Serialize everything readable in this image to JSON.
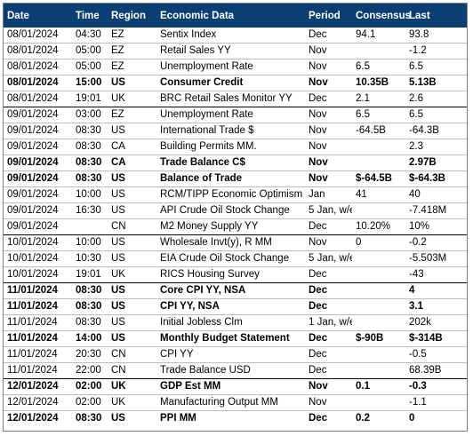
{
  "headers": {
    "date": "Date",
    "time": "Time",
    "region": "Region",
    "event": "Economic Data",
    "period": "Period",
    "consensus": "Consensus",
    "last": "Last"
  },
  "rows": [
    {
      "date": "08/01/2024",
      "time": "04:30",
      "region": "EZ",
      "event": "Sentix Index",
      "period": "Dec",
      "consensus": "94.1",
      "last": "93.8"
    },
    {
      "date": "08/01/2024",
      "time": "05:00",
      "region": "EZ",
      "event": "Retail Sales YY",
      "period": "Nov",
      "consensus": "",
      "last": "-1.2"
    },
    {
      "date": "08/01/2024",
      "time": "05:00",
      "region": "EZ",
      "event": "Unemployment Rate",
      "period": "Nov",
      "consensus": "6.5",
      "last": "6.5"
    },
    {
      "date": "08/01/2024",
      "time": "15:00",
      "region": "US",
      "event": "Consumer Credit",
      "period": "Nov",
      "consensus": "10.35B",
      "last": "5.13B"
    },
    {
      "date": "08/01/2024",
      "time": "19:01",
      "region": "UK",
      "event": "BRC Retail Sales Monitor YY",
      "period": "Dec",
      "consensus": "2.1",
      "last": "2.6"
    },
    {
      "date": "09/01/2024",
      "time": "03:00",
      "region": "EZ",
      "event": "Unemployment Rate",
      "period": "Nov",
      "consensus": "6.5",
      "last": "6.5"
    },
    {
      "date": "09/01/2024",
      "time": "08:30",
      "region": "US",
      "event": "International Trade $",
      "period": "Nov",
      "consensus": "-64.5B",
      "last": "-64.3B"
    },
    {
      "date": "09/01/2024",
      "time": "08:30",
      "region": "CA",
      "event": "Building Permits MM.",
      "period": "Nov",
      "consensus": "",
      "last": "2.3"
    },
    {
      "date": "09/01/2024",
      "time": "08:30",
      "region": "CA",
      "event": "Trade Balance C$",
      "period": "Nov",
      "consensus": "",
      "last": "2.97B"
    },
    {
      "date": "09/01/2024",
      "time": "08:30",
      "region": "US",
      "event": "Balance of Trade",
      "period": "Nov",
      "consensus": "$-64.5B",
      "last": "$-64.3B"
    },
    {
      "date": "09/01/2024",
      "time": "10:00",
      "region": "US",
      "event": "RCM/TIPP Economic Optimism",
      "period": "Jan",
      "consensus": "41",
      "last": "40"
    },
    {
      "date": "09/01/2024",
      "time": "16:30",
      "region": "US",
      "event": "API Crude Oil Stock Change",
      "period": "5 Jan, w/e",
      "consensus": "",
      "last": "-7.418M"
    },
    {
      "date": "09/01/2024",
      "time": "",
      "region": "CN",
      "event": "M2 Money Supply YY",
      "period": "Dec",
      "consensus": "10.20%",
      "last": "10%"
    },
    {
      "date": "10/01/2024",
      "time": "10:00",
      "region": "US",
      "event": "Wholesale Invt(y), R MM",
      "period": "Nov",
      "consensus": "0",
      "last": "-0.2"
    },
    {
      "date": "10/01/2024",
      "time": "10:30",
      "region": "US",
      "event": "EIA Crude Oil Stock Change",
      "period": "5 Jan, w/e",
      "consensus": "",
      "last": "-5.503M"
    },
    {
      "date": "10/01/2024",
      "time": "19:01",
      "region": "UK",
      "event": "RICS Housing Survey",
      "period": "Dec",
      "consensus": "",
      "last": "-43"
    },
    {
      "date": "11/01/2024",
      "time": "08:30",
      "region": "US",
      "event": "Core CPI YY, NSA",
      "period": "Dec",
      "consensus": "",
      "last": "4"
    },
    {
      "date": "11/01/2024",
      "time": "08:30",
      "region": "US",
      "event": "CPI YY, NSA",
      "period": "Dec",
      "consensus": "",
      "last": "3.1"
    },
    {
      "date": "11/01/2024",
      "time": "08:30",
      "region": "US",
      "event": "Initial Jobless Clm",
      "period": "1 Jan, w/e",
      "consensus": "",
      "last": "202k"
    },
    {
      "date": "11/01/2024",
      "time": "14:00",
      "region": "US",
      "event": "Monthly Budget Statement",
      "period": "Dec",
      "consensus": "$-90B",
      "last": "$-314B"
    },
    {
      "date": "11/01/2024",
      "time": "20:30",
      "region": "CN",
      "event": "CPI YY",
      "period": "Dec",
      "consensus": "",
      "last": "-0.5"
    },
    {
      "date": "11/01/2024",
      "time": "22:00",
      "region": "CN",
      "event": "Trade Balance USD",
      "period": "Dec",
      "consensus": "",
      "last": "68.39B"
    },
    {
      "date": "12/01/2024",
      "time": "02:00",
      "region": "UK",
      "event": "GDP Est MM",
      "period": "Nov",
      "consensus": "0.1",
      "last": "-0.3"
    },
    {
      "date": "12/01/2024",
      "time": "02:00",
      "region": "UK",
      "event": "Manufacturing Output MM",
      "period": "Nov",
      "consensus": "",
      "last": "-1.1"
    },
    {
      "date": "12/01/2024",
      "time": "08:30",
      "region": "US",
      "event": "PPI MM",
      "period": "Dec",
      "consensus": "0.2",
      "last": "0"
    }
  ]
}
